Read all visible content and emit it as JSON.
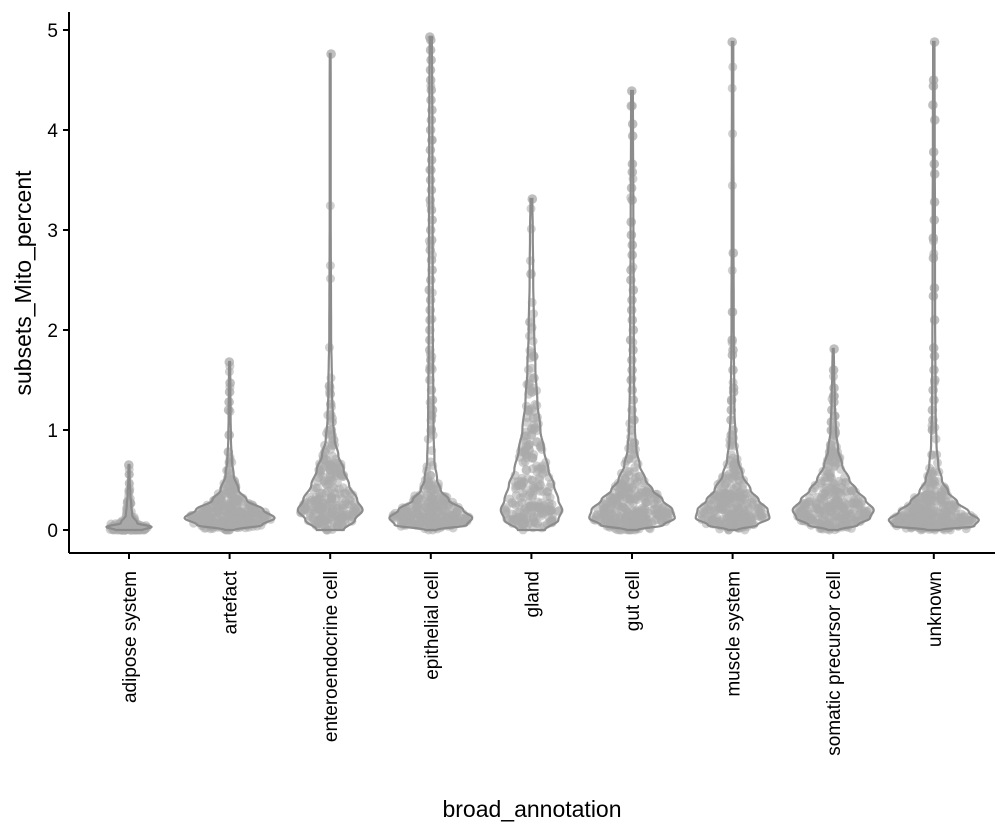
{
  "chart_data": {
    "type": "violin",
    "title": "",
    "xlabel": "broad_annotation",
    "ylabel": "subsets_Mito_percent",
    "ylim": [
      0,
      5
    ],
    "yticks": [
      0,
      1,
      2,
      3,
      4,
      5
    ],
    "grid": false,
    "legend": "none",
    "colors": {
      "violin": "#8c8c8c",
      "points": "#a9a9a9"
    },
    "categories": [
      "adipose system",
      "artefact",
      "enteroendocrine cell",
      "epithelial cell",
      "gland",
      "gut cell",
      "muscle system",
      "somatic precursor cell",
      "unknown"
    ],
    "series": [
      {
        "category": "adipose system",
        "ymax": 0.65,
        "density": [
          [
            0.0,
            0.3
          ],
          [
            0.03,
            0.5
          ],
          [
            0.07,
            0.18
          ],
          [
            0.15,
            0.07
          ],
          [
            0.25,
            0.05
          ],
          [
            0.35,
            0.03
          ],
          [
            0.5,
            0.015
          ],
          [
            0.65,
            0.01
          ]
        ],
        "outliers": [
          0.65,
          0.27,
          0.2,
          0.12,
          0.08,
          0.05,
          0.03,
          0.02,
          0.01,
          0.0,
          0.0,
          0.0
        ]
      },
      {
        "category": "artefact",
        "ymax": 1.68,
        "density": [
          [
            0.0,
            0.1
          ],
          [
            0.05,
            0.72
          ],
          [
            0.12,
            1.0
          ],
          [
            0.2,
            0.75
          ],
          [
            0.3,
            0.38
          ],
          [
            0.4,
            0.2
          ],
          [
            0.55,
            0.09
          ],
          [
            0.7,
            0.05
          ],
          [
            0.9,
            0.03
          ],
          [
            1.2,
            0.02
          ],
          [
            1.5,
            0.015
          ],
          [
            1.68,
            0.01
          ]
        ],
        "outliers": [
          1.68,
          1.47,
          1.38,
          1.28,
          1.2,
          0.95,
          0.78,
          0.68,
          0.6,
          0.52,
          0.48
        ]
      },
      {
        "category": "enteroendocrine cell",
        "ymax": 4.76,
        "density": [
          [
            0.0,
            0.3
          ],
          [
            0.1,
            0.55
          ],
          [
            0.2,
            0.72
          ],
          [
            0.3,
            0.6
          ],
          [
            0.45,
            0.42
          ],
          [
            0.6,
            0.3
          ],
          [
            0.75,
            0.18
          ],
          [
            0.9,
            0.1
          ],
          [
            1.1,
            0.06
          ],
          [
            1.4,
            0.04
          ],
          [
            2.0,
            0.02
          ],
          [
            3.0,
            0.012
          ],
          [
            4.76,
            0.01
          ]
        ],
        "outliers": [
          4.76,
          1.44,
          1.36,
          1.26,
          1.15,
          1.08,
          1.0,
          0.95,
          0.9,
          0.85,
          0.78,
          0.72,
          0.7,
          0.65,
          0.6,
          0.55
        ]
      },
      {
        "category": "epithelial cell",
        "ymax": 4.93,
        "density": [
          [
            0.0,
            0.12
          ],
          [
            0.05,
            0.8
          ],
          [
            0.12,
            0.92
          ],
          [
            0.2,
            0.72
          ],
          [
            0.3,
            0.4
          ],
          [
            0.4,
            0.22
          ],
          [
            0.5,
            0.14
          ],
          [
            0.7,
            0.08
          ],
          [
            1.0,
            0.06
          ],
          [
            2.0,
            0.045
          ],
          [
            3.0,
            0.04
          ],
          [
            4.0,
            0.035
          ],
          [
            4.93,
            0.025
          ]
        ],
        "outliers": [
          4.93,
          4.9,
          4.8,
          4.7,
          4.6,
          4.5,
          4.4,
          4.3,
          4.2,
          4.1,
          4.0,
          3.9,
          3.8,
          3.7,
          3.6,
          3.5,
          3.4,
          3.3,
          3.2,
          3.1,
          3.0,
          2.9,
          2.8,
          2.7,
          2.6,
          2.5,
          2.4,
          2.3,
          2.2,
          2.1,
          2.0,
          1.9,
          1.8,
          1.7,
          1.6,
          1.5,
          1.4,
          1.3,
          1.2,
          1.1,
          1.0
        ]
      },
      {
        "category": "gland",
        "ymax": 3.31,
        "density": [
          [
            0.0,
            0.3
          ],
          [
            0.1,
            0.6
          ],
          [
            0.2,
            0.68
          ],
          [
            0.3,
            0.6
          ],
          [
            0.45,
            0.5
          ],
          [
            0.6,
            0.38
          ],
          [
            0.8,
            0.28
          ],
          [
            1.0,
            0.2
          ],
          [
            1.3,
            0.13
          ],
          [
            1.6,
            0.09
          ],
          [
            2.0,
            0.06
          ],
          [
            2.5,
            0.04
          ],
          [
            3.0,
            0.03
          ],
          [
            3.31,
            0.02
          ]
        ],
        "outliers": [
          3.31,
          2.56,
          2.08,
          1.74,
          1.52,
          1.46,
          1.38,
          1.2,
          1.12,
          1.02,
          0.95,
          0.88,
          0.8,
          0.72,
          0.6,
          0.45
        ]
      },
      {
        "category": "gut cell",
        "ymax": 4.39,
        "density": [
          [
            0.0,
            0.12
          ],
          [
            0.05,
            0.7
          ],
          [
            0.12,
            0.95
          ],
          [
            0.2,
            0.9
          ],
          [
            0.3,
            0.68
          ],
          [
            0.4,
            0.46
          ],
          [
            0.5,
            0.3
          ],
          [
            0.65,
            0.17
          ],
          [
            0.8,
            0.1
          ],
          [
            1.0,
            0.065
          ],
          [
            1.5,
            0.045
          ],
          [
            2.0,
            0.04
          ],
          [
            3.0,
            0.03
          ],
          [
            4.39,
            0.02
          ]
        ],
        "outliers": [
          4.39,
          4.24,
          4.06,
          3.94,
          3.66,
          3.58,
          3.42,
          3.3,
          3.08,
          2.95,
          2.85,
          2.75,
          2.6,
          2.5,
          2.4,
          2.3,
          2.2,
          2.1,
          2.0,
          1.9,
          1.8,
          1.7,
          1.6,
          1.5,
          1.4,
          1.3,
          1.2,
          1.1,
          1.0
        ]
      },
      {
        "category": "muscle system",
        "ymax": 4.88,
        "density": [
          [
            0.0,
            0.1
          ],
          [
            0.05,
            0.55
          ],
          [
            0.12,
            0.82
          ],
          [
            0.2,
            0.78
          ],
          [
            0.3,
            0.58
          ],
          [
            0.4,
            0.4
          ],
          [
            0.55,
            0.22
          ],
          [
            0.7,
            0.12
          ],
          [
            0.9,
            0.07
          ],
          [
            1.2,
            0.04
          ],
          [
            2.0,
            0.025
          ],
          [
            3.0,
            0.02
          ],
          [
            4.88,
            0.015
          ]
        ],
        "outliers": [
          4.88,
          2.77,
          2.18,
          1.9,
          1.8,
          1.75,
          1.6,
          1.42,
          1.38,
          1.3,
          1.2,
          1.1,
          1.0,
          0.95
        ]
      },
      {
        "category": "somatic precursor cell",
        "ymax": 1.81,
        "density": [
          [
            0.0,
            0.12
          ],
          [
            0.05,
            0.55
          ],
          [
            0.12,
            0.82
          ],
          [
            0.2,
            0.9
          ],
          [
            0.3,
            0.72
          ],
          [
            0.4,
            0.52
          ],
          [
            0.5,
            0.36
          ],
          [
            0.65,
            0.2
          ],
          [
            0.8,
            0.11
          ],
          [
            1.0,
            0.06
          ],
          [
            1.3,
            0.035
          ],
          [
            1.6,
            0.02
          ],
          [
            1.81,
            0.012
          ]
        ],
        "outliers": [
          1.81,
          1.6,
          1.42,
          1.34,
          1.28,
          1.2,
          1.14,
          1.08,
          1.0,
          0.95,
          0.9,
          0.85
        ]
      },
      {
        "category": "unknown",
        "ymax": 4.88,
        "density": [
          [
            0.0,
            0.15
          ],
          [
            0.04,
            0.9
          ],
          [
            0.1,
            1.0
          ],
          [
            0.18,
            0.78
          ],
          [
            0.28,
            0.52
          ],
          [
            0.38,
            0.32
          ],
          [
            0.5,
            0.18
          ],
          [
            0.65,
            0.1
          ],
          [
            0.85,
            0.06
          ],
          [
            1.2,
            0.04
          ],
          [
            2.0,
            0.03
          ],
          [
            3.0,
            0.025
          ],
          [
            4.0,
            0.02
          ],
          [
            4.88,
            0.015
          ]
        ],
        "outliers": [
          4.88,
          4.5,
          4.44,
          4.25,
          4.1,
          3.78,
          3.66,
          3.56,
          3.28,
          3.1,
          2.92,
          2.72,
          2.42,
          2.34,
          2.1,
          1.82,
          1.74,
          1.6,
          1.5,
          1.4,
          1.3,
          1.2,
          1.1,
          1.0
        ]
      }
    ]
  }
}
